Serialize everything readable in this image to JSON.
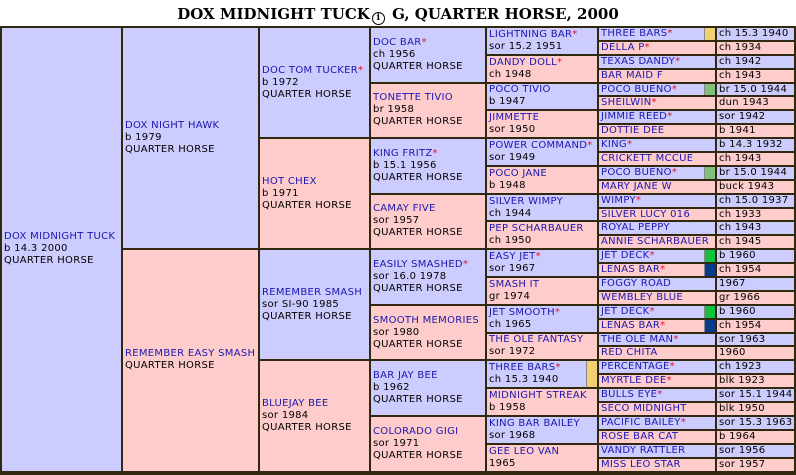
{
  "title": {
    "horse": "DOX MIDNIGHT TUCK",
    "info_icon": "info-circle-icon",
    "suffix": " G, QUARTER HORSE, 2000"
  },
  "colors": {
    "sire": "#ccccff",
    "dam": "#ffcccc",
    "border": "#30290f",
    "name": "#1b17b0",
    "star": "#e0102a"
  },
  "markers": {
    "yellow": "#f0d072",
    "green": "#7fc07a",
    "bright_green": "#10c040",
    "navy": "#0a3a8c"
  },
  "pedigree": {
    "gen0": [
      {
        "name": "DOX MIDNIGHT TUCK",
        "star": false,
        "info": "b 14.3 2000",
        "breed": "QUARTER HORSE"
      }
    ],
    "gen1": [
      {
        "name": "DOX NIGHT HAWK",
        "star": false,
        "info": "b 1979",
        "breed": "QUARTER HORSE"
      },
      {
        "name": "REMEMBER EASY SMASH",
        "star": false,
        "info": "",
        "breed": "QUARTER HORSE"
      }
    ],
    "gen2": [
      {
        "name": "DOC TOM TUCKER",
        "star": true,
        "info": "b 1972",
        "breed": "QUARTER HORSE"
      },
      {
        "name": "HOT CHEX",
        "star": false,
        "info": "b 1971",
        "breed": "QUARTER HORSE"
      },
      {
        "name": "REMEMBER SMASH",
        "star": false,
        "info": "sor SI-90 1985",
        "breed": "QUARTER HORSE"
      },
      {
        "name": "BLUEJAY BEE",
        "star": false,
        "info": "sor 1984",
        "breed": "QUARTER HORSE"
      }
    ],
    "gen3": [
      {
        "name": "DOC BAR",
        "star": true,
        "info": "ch 1956",
        "breed": "QUARTER HORSE"
      },
      {
        "name": "TONETTE TIVIO",
        "star": false,
        "info": "br 1958",
        "breed": "QUARTER HORSE"
      },
      {
        "name": "KING FRITZ",
        "star": true,
        "info": "b 15.1 1956",
        "breed": "QUARTER HORSE"
      },
      {
        "name": "CAMAY FIVE",
        "star": false,
        "info": "sor 1957",
        "breed": "QUARTER HORSE"
      },
      {
        "name": "EASILY SMASHED",
        "star": true,
        "info": "sor 16.0 1978",
        "breed": "QUARTER HORSE"
      },
      {
        "name": "SMOOTH MEMORIES",
        "star": false,
        "info": "sor 1980",
        "breed": "QUARTER HORSE"
      },
      {
        "name": "BAR JAY BEE",
        "star": false,
        "info": "b 1962",
        "breed": "QUARTER HORSE"
      },
      {
        "name": "COLORADO GIGI",
        "star": false,
        "info": "sor 1971",
        "breed": "QUARTER HORSE"
      }
    ],
    "gen4": [
      {
        "name": "LIGHTNING BAR",
        "star": true,
        "info": "sor 15.2 1951"
      },
      {
        "name": "DANDY DOLL",
        "star": true,
        "info": "ch 1948"
      },
      {
        "name": "POCO TIVIO",
        "star": false,
        "info": "b 1947"
      },
      {
        "name": "JIMMETTE",
        "star": false,
        "info": "sor 1950"
      },
      {
        "name": "POWER COMMAND",
        "star": true,
        "info": "sor 1949"
      },
      {
        "name": "POCO JANE",
        "star": false,
        "info": "b 1948"
      },
      {
        "name": "SILVER WIMPY",
        "star": false,
        "info": "ch 1944"
      },
      {
        "name": "PEP SCHARBAUER",
        "star": false,
        "info": "ch 1950"
      },
      {
        "name": "EASY JET",
        "star": true,
        "info": "sor 1967"
      },
      {
        "name": "SMASH IT",
        "star": false,
        "info": "gr 1974"
      },
      {
        "name": "JET SMOOTH",
        "star": true,
        "info": "ch 1965"
      },
      {
        "name": "THE OLE FANTASY",
        "star": false,
        "info": "sor 1972"
      },
      {
        "name": "THREE BARS",
        "star": true,
        "info": "ch 15.3 1940",
        "marker": "yellow"
      },
      {
        "name": "MIDNIGHT STREAK",
        "star": false,
        "info": "b 1958"
      },
      {
        "name": "KING BAR BAILEY",
        "star": false,
        "info": "sor 1968"
      },
      {
        "name": "GEE LEO VAN",
        "star": false,
        "info": "1965"
      }
    ],
    "gen5": [
      {
        "name": "THREE BARS",
        "star": true,
        "info": "ch 15.3 1940",
        "marker": "yellow"
      },
      {
        "name": "DELLA P",
        "star": true,
        "info": "ch 1934"
      },
      {
        "name": "TEXAS DANDY",
        "star": true,
        "info": "ch 1942"
      },
      {
        "name": "BAR MAID F",
        "star": false,
        "info": "ch 1943"
      },
      {
        "name": "POCO BUENO",
        "star": true,
        "info": "br 15.0 1944",
        "marker": "green"
      },
      {
        "name": "SHEILWIN",
        "star": true,
        "info": "dun 1943"
      },
      {
        "name": "JIMMIE REED",
        "star": true,
        "info": "sor 1942"
      },
      {
        "name": "DOTTIE DEE",
        "star": false,
        "info": "b 1941"
      },
      {
        "name": "KING",
        "star": true,
        "info": "b 14.3 1932"
      },
      {
        "name": "CRICKETT MCCUE",
        "star": false,
        "info": "ch 1943"
      },
      {
        "name": "POCO BUENO",
        "star": true,
        "info": "br 15.0 1944",
        "marker": "green"
      },
      {
        "name": "MARY JANE W",
        "star": false,
        "info": "buck 1943"
      },
      {
        "name": "WIMPY",
        "star": true,
        "info": "ch 15.0 1937"
      },
      {
        "name": "SILVER LUCY 016",
        "star": false,
        "info": "ch 1933"
      },
      {
        "name": "ROYAL PEPPY",
        "star": false,
        "info": "ch 1943"
      },
      {
        "name": "ANNIE SCHARBAUER",
        "star": false,
        "info": "ch 1945"
      },
      {
        "name": "JET DECK",
        "star": true,
        "info": "b 1960",
        "marker": "bright_green"
      },
      {
        "name": "LENAS BAR",
        "star": true,
        "info": "ch 1954",
        "marker": "navy"
      },
      {
        "name": "FOGGY ROAD",
        "star": false,
        "info": "1967"
      },
      {
        "name": "WEMBLEY BLUE",
        "star": false,
        "info": "gr 1966"
      },
      {
        "name": "JET DECK",
        "star": true,
        "info": "b 1960",
        "marker": "bright_green"
      },
      {
        "name": "LENAS BAR",
        "star": true,
        "info": "ch 1954",
        "marker": "navy"
      },
      {
        "name": "THE OLE MAN",
        "star": true,
        "info": "sor 1963"
      },
      {
        "name": "RED CHITA",
        "star": false,
        "info": "1960"
      },
      {
        "name": "PERCENTAGE",
        "star": true,
        "info": "ch 1923"
      },
      {
        "name": "MYRTLE DEE",
        "star": true,
        "info": "blk 1923"
      },
      {
        "name": "BULLS EYE",
        "star": true,
        "info": "sor 15.1 1944"
      },
      {
        "name": "SECO MIDNIGHT",
        "star": false,
        "info": "blk 1950"
      },
      {
        "name": "PACIFIC BAILEY",
        "star": true,
        "info": "sor 15.3 1963"
      },
      {
        "name": "ROSE BAR CAT",
        "star": false,
        "info": "b 1964"
      },
      {
        "name": "VANDY RATTLER",
        "star": false,
        "info": "sor 1956"
      },
      {
        "name": "MISS LEO STAR",
        "star": false,
        "info": "sor 1957"
      }
    ]
  }
}
